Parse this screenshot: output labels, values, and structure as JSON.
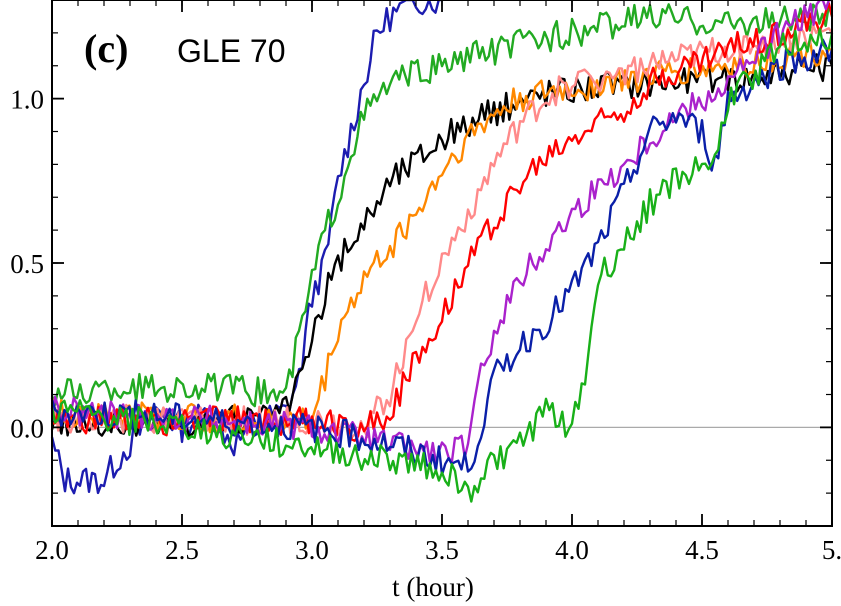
{
  "chart_data": {
    "type": "line",
    "panel_label": "(c)",
    "title": "GLE 70",
    "xlabel": "t (hour)",
    "ylabel": "",
    "xlim": [
      2.0,
      5.0
    ],
    "ylim": [
      -0.3,
      1.3
    ],
    "x_ticks": [
      "2.0",
      "2.5",
      "3.0",
      "3.5",
      "4.0",
      "4.5",
      "5."
    ],
    "y_ticks": [
      "0.0",
      "0.5",
      "1.0"
    ],
    "y_tick_values": [
      0.0,
      0.5,
      1.0
    ],
    "x_tick_values": [
      2.0,
      2.5,
      3.0,
      3.5,
      4.0,
      4.5,
      5.0
    ],
    "grid": false,
    "reference_line": {
      "y": 0.0,
      "color": "#aaaaaa"
    },
    "series": [
      {
        "color": "#1c1cb0",
        "values": [
          [
            2.0,
            -0.05
          ],
          [
            2.05,
            -0.16
          ],
          [
            2.2,
            -0.16
          ],
          [
            2.25,
            -0.1
          ],
          [
            2.4,
            0.05
          ],
          [
            2.5,
            0.0
          ],
          [
            2.6,
            0.05
          ],
          [
            2.7,
            -0.05
          ],
          [
            2.8,
            0.02
          ],
          [
            2.9,
            0.05
          ],
          [
            2.95,
            0.15
          ],
          [
            3.0,
            0.4
          ],
          [
            3.05,
            0.5
          ],
          [
            3.1,
            0.75
          ],
          [
            3.15,
            0.9
          ],
          [
            3.2,
            1.05
          ],
          [
            3.25,
            1.2
          ],
          [
            3.3,
            1.25
          ],
          [
            3.4,
            1.3
          ],
          [
            3.5,
            1.3
          ]
        ]
      },
      {
        "color": "#22aa22",
        "values": [
          [
            2.0,
            0.1
          ],
          [
            2.3,
            0.12
          ],
          [
            2.6,
            0.12
          ],
          [
            2.9,
            0.1
          ],
          [
            3.0,
            0.45
          ],
          [
            3.05,
            0.6
          ],
          [
            3.1,
            0.7
          ],
          [
            3.15,
            0.85
          ],
          [
            3.2,
            0.95
          ],
          [
            3.3,
            1.05
          ],
          [
            3.5,
            1.1
          ],
          [
            3.8,
            1.17
          ],
          [
            4.0,
            1.2
          ],
          [
            4.3,
            1.25
          ],
          [
            4.6,
            1.23
          ],
          [
            5.0,
            1.25
          ]
        ]
      },
      {
        "color": "#000000",
        "values": [
          [
            2.0,
            0.02
          ],
          [
            2.3,
            0.0
          ],
          [
            2.6,
            0.02
          ],
          [
            2.8,
            0.02
          ],
          [
            2.9,
            0.05
          ],
          [
            3.0,
            0.25
          ],
          [
            3.05,
            0.4
          ],
          [
            3.1,
            0.5
          ],
          [
            3.2,
            0.62
          ],
          [
            3.3,
            0.75
          ],
          [
            3.5,
            0.88
          ],
          [
            3.7,
            0.96
          ],
          [
            3.9,
            1.02
          ],
          [
            4.1,
            1.04
          ],
          [
            4.3,
            1.05
          ],
          [
            4.6,
            1.06
          ],
          [
            4.8,
            1.08
          ],
          [
            5.0,
            1.1
          ]
        ]
      },
      {
        "color": "#ff8800",
        "values": [
          [
            2.0,
            0.05
          ],
          [
            2.5,
            0.03
          ],
          [
            3.0,
            0.02
          ],
          [
            3.05,
            0.15
          ],
          [
            3.1,
            0.3
          ],
          [
            3.2,
            0.45
          ],
          [
            3.3,
            0.55
          ],
          [
            3.4,
            0.65
          ],
          [
            3.5,
            0.78
          ],
          [
            3.6,
            0.88
          ],
          [
            3.7,
            0.95
          ],
          [
            3.8,
            1.0
          ],
          [
            4.0,
            1.03
          ],
          [
            4.3,
            1.07
          ],
          [
            4.6,
            1.1
          ],
          [
            5.0,
            1.15
          ]
        ]
      },
      {
        "color": "#ff8a8a",
        "values": [
          [
            2.0,
            0.03
          ],
          [
            2.5,
            0.02
          ],
          [
            3.0,
            0.02
          ],
          [
            3.2,
            0.0
          ],
          [
            3.3,
            0.1
          ],
          [
            3.4,
            0.35
          ],
          [
            3.5,
            0.5
          ],
          [
            3.6,
            0.65
          ],
          [
            3.7,
            0.8
          ],
          [
            3.8,
            0.92
          ],
          [
            3.9,
            1.0
          ],
          [
            4.0,
            1.05
          ],
          [
            4.3,
            1.1
          ],
          [
            4.6,
            1.15
          ],
          [
            5.0,
            1.2
          ]
        ]
      },
      {
        "color": "#ff0000",
        "values": [
          [
            2.0,
            0.02
          ],
          [
            2.5,
            0.02
          ],
          [
            3.0,
            0.02
          ],
          [
            3.2,
            0.0
          ],
          [
            3.3,
            0.05
          ],
          [
            3.4,
            0.2
          ],
          [
            3.5,
            0.35
          ],
          [
            3.6,
            0.5
          ],
          [
            3.7,
            0.63
          ],
          [
            3.8,
            0.74
          ],
          [
            3.9,
            0.82
          ],
          [
            4.0,
            0.88
          ],
          [
            4.1,
            0.93
          ],
          [
            4.2,
            0.97
          ],
          [
            4.3,
            1.05
          ],
          [
            4.6,
            1.15
          ],
          [
            5.0,
            1.25
          ]
        ]
      },
      {
        "color": "#aa22cc",
        "values": [
          [
            2.0,
            0.05
          ],
          [
            2.5,
            0.03
          ],
          [
            3.0,
            0.0
          ],
          [
            3.3,
            -0.05
          ],
          [
            3.5,
            -0.08
          ],
          [
            3.6,
            -0.06
          ],
          [
            3.65,
            0.15
          ],
          [
            3.7,
            0.3
          ],
          [
            3.8,
            0.45
          ],
          [
            3.9,
            0.55
          ],
          [
            4.0,
            0.65
          ],
          [
            4.1,
            0.73
          ],
          [
            4.2,
            0.8
          ],
          [
            4.3,
            0.88
          ],
          [
            4.4,
            0.95
          ],
          [
            4.5,
            1.0
          ],
          [
            4.6,
            1.05
          ],
          [
            4.8,
            1.2
          ],
          [
            5.0,
            1.3
          ]
        ]
      },
      {
        "color": "#0a1fa8",
        "values": [
          [
            2.0,
            0.05
          ],
          [
            2.5,
            0.03
          ],
          [
            3.0,
            0.0
          ],
          [
            3.3,
            -0.05
          ],
          [
            3.5,
            -0.1
          ],
          [
            3.6,
            -0.12
          ],
          [
            3.65,
            0.0
          ],
          [
            3.7,
            0.15
          ],
          [
            3.8,
            0.25
          ],
          [
            3.9,
            0.32
          ],
          [
            4.0,
            0.42
          ],
          [
            4.1,
            0.55
          ],
          [
            4.2,
            0.72
          ],
          [
            4.3,
            0.9
          ],
          [
            4.4,
            0.95
          ],
          [
            4.5,
            0.9
          ],
          [
            4.55,
            0.8
          ],
          [
            4.6,
            1.0
          ],
          [
            4.8,
            1.1
          ],
          [
            5.0,
            1.15
          ]
        ]
      },
      {
        "color": "#19b019",
        "values": [
          [
            2.0,
            0.05
          ],
          [
            2.5,
            0.0
          ],
          [
            2.9,
            -0.05
          ],
          [
            3.3,
            -0.1
          ],
          [
            3.5,
            -0.12
          ],
          [
            3.6,
            -0.2
          ],
          [
            3.7,
            -0.1
          ],
          [
            3.8,
            -0.05
          ],
          [
            3.9,
            0.05
          ],
          [
            4.0,
            0.0
          ],
          [
            4.05,
            0.15
          ],
          [
            4.1,
            0.45
          ],
          [
            4.2,
            0.55
          ],
          [
            4.3,
            0.68
          ],
          [
            4.4,
            0.75
          ],
          [
            4.5,
            0.8
          ],
          [
            4.55,
            0.8
          ],
          [
            4.6,
            1.0
          ],
          [
            4.8,
            1.15
          ],
          [
            5.0,
            1.2
          ]
        ]
      }
    ]
  }
}
